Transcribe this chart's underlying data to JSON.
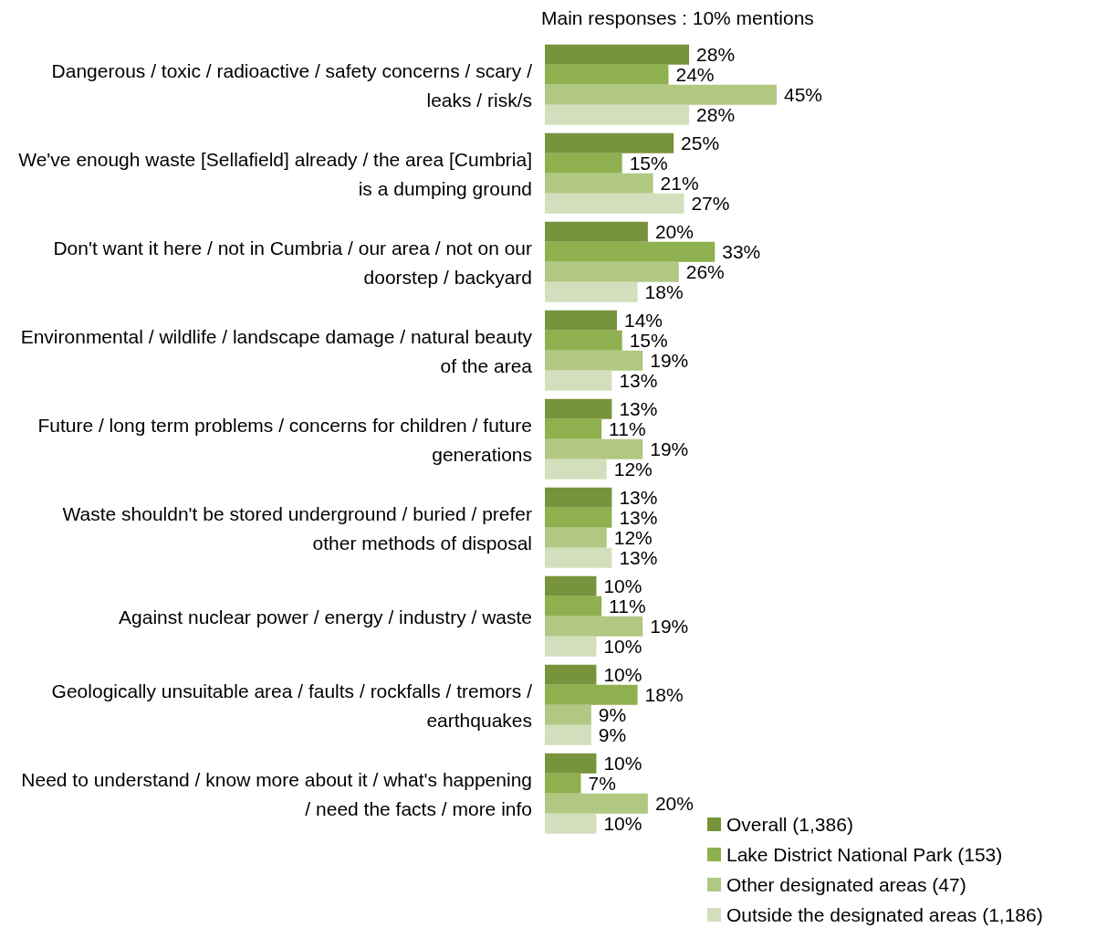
{
  "chart_data": {
    "type": "bar",
    "orientation": "horizontal",
    "title": "Main responses : 10% mentions",
    "categories": [
      "Dangerous / toxic / radioactive / safety concerns / scary / leaks / risk/s",
      "We've enough waste [Sellafield] already / the area [Cumbria] is a dumping ground",
      "Don't want it here / not in Cumbria / our area / not on our doorstep / backyard",
      "Environmental / wildlife / landscape damage / natural beauty of the area",
      "Future / long term problems / concerns for children / future generations",
      "Waste shouldn't be stored underground / buried / prefer other methods of disposal",
      "Against nuclear power / energy / industry / waste",
      "Geologically unsuitable area / faults / rockfalls / tremors / earthquakes",
      "Need to understand / know more about it / what's happening / need the facts / more info"
    ],
    "series": [
      {
        "name": "Overall (1,386)",
        "color": "#77933c",
        "values": [
          28,
          25,
          20,
          14,
          13,
          13,
          10,
          10,
          10
        ],
        "value_labels": [
          "28%",
          "25%",
          "20%",
          "14%",
          "13%",
          "13%",
          "10%",
          "10%",
          "10%"
        ]
      },
      {
        "name": "Lake District National Park (153)",
        "color": "#8fb04e",
        "values": [
          24,
          15,
          33,
          15,
          11,
          13,
          11,
          18,
          7
        ],
        "value_labels": [
          "24%",
          "15%",
          "33%",
          "15%",
          "11%",
          "13%",
          "11%",
          "18%",
          "7%"
        ]
      },
      {
        "name": "Other designated areas (47)",
        "color": "#b0c882",
        "values": [
          45,
          21,
          26,
          19,
          19,
          12,
          19,
          9,
          20
        ],
        "value_labels": [
          "45%",
          "21%",
          "26%",
          "19%",
          "19%",
          "12%",
          "19%",
          "9%",
          "20%"
        ]
      },
      {
        "name": "Outside the designated areas (1,186)",
        "color": "#d3dfbc",
        "values": [
          28,
          27,
          18,
          13,
          12,
          13,
          10,
          9,
          10
        ],
        "value_labels": [
          "28%",
          "27%",
          "18%",
          "13%",
          "12%",
          "13%",
          "10%",
          "9%",
          "10%"
        ]
      }
    ],
    "legend": "bottom right"
  }
}
